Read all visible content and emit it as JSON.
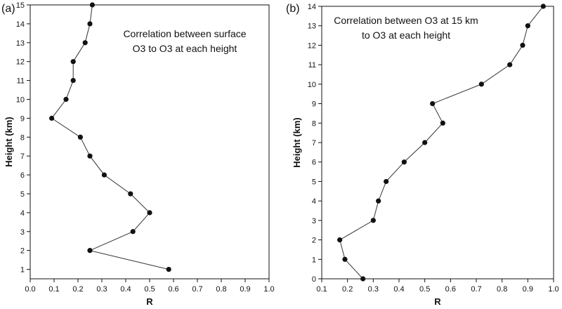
{
  "chart_data": [
    {
      "type": "line",
      "panel_label": "(a)",
      "annotation": [
        "Correlation between surface",
        "O3 to O3 at each height"
      ],
      "xlabel": "R",
      "ylabel": "Height (km)",
      "xlim": [
        0.0,
        1.0
      ],
      "ylim": [
        0.5,
        15
      ],
      "xticks": [
        "0.0",
        "0.1",
        "0.2",
        "0.3",
        "0.4",
        "0.5",
        "0.6",
        "0.7",
        "0.8",
        "0.9",
        "1.0"
      ],
      "yticks": [
        "1",
        "2",
        "3",
        "4",
        "5",
        "6",
        "7",
        "8",
        "9",
        "10",
        "11",
        "12",
        "13",
        "14",
        "15"
      ],
      "grid": false,
      "series": [
        {
          "x": [
            0.58,
            0.25,
            0.43,
            0.5,
            0.42,
            0.31,
            0.25,
            0.21,
            0.09,
            0.15,
            0.18,
            0.18,
            0.23,
            0.25,
            0.26
          ],
          "y": [
            1,
            2,
            3,
            4,
            5,
            6,
            7,
            8,
            9,
            10,
            11,
            12,
            13,
            14,
            15
          ]
        }
      ]
    },
    {
      "type": "line",
      "panel_label": "(b)",
      "annotation": [
        "Correlation between O3 at 15 km",
        "to O3 at each height"
      ],
      "xlabel": "R",
      "ylabel": "Height (km)",
      "xlim": [
        0.1,
        1.0
      ],
      "ylim": [
        0,
        14
      ],
      "xticks": [
        "0.1",
        "0.2",
        "0.3",
        "0.4",
        "0.5",
        "0.6",
        "0.7",
        "0.8",
        "0.9",
        "1.0"
      ],
      "yticks": [
        "0",
        "1",
        "2",
        "3",
        "4",
        "5",
        "6",
        "7",
        "8",
        "9",
        "10",
        "11",
        "12",
        "13",
        "14"
      ],
      "grid": false,
      "series": [
        {
          "x": [
            0.26,
            0.19,
            0.17,
            0.3,
            0.32,
            0.35,
            0.42,
            0.5,
            0.57,
            0.53,
            0.72,
            0.83,
            0.88,
            0.9,
            0.96
          ],
          "y": [
            0,
            1,
            2,
            3,
            4,
            5,
            6,
            7,
            8,
            9,
            10,
            11,
            12,
            13,
            14
          ]
        }
      ]
    }
  ]
}
